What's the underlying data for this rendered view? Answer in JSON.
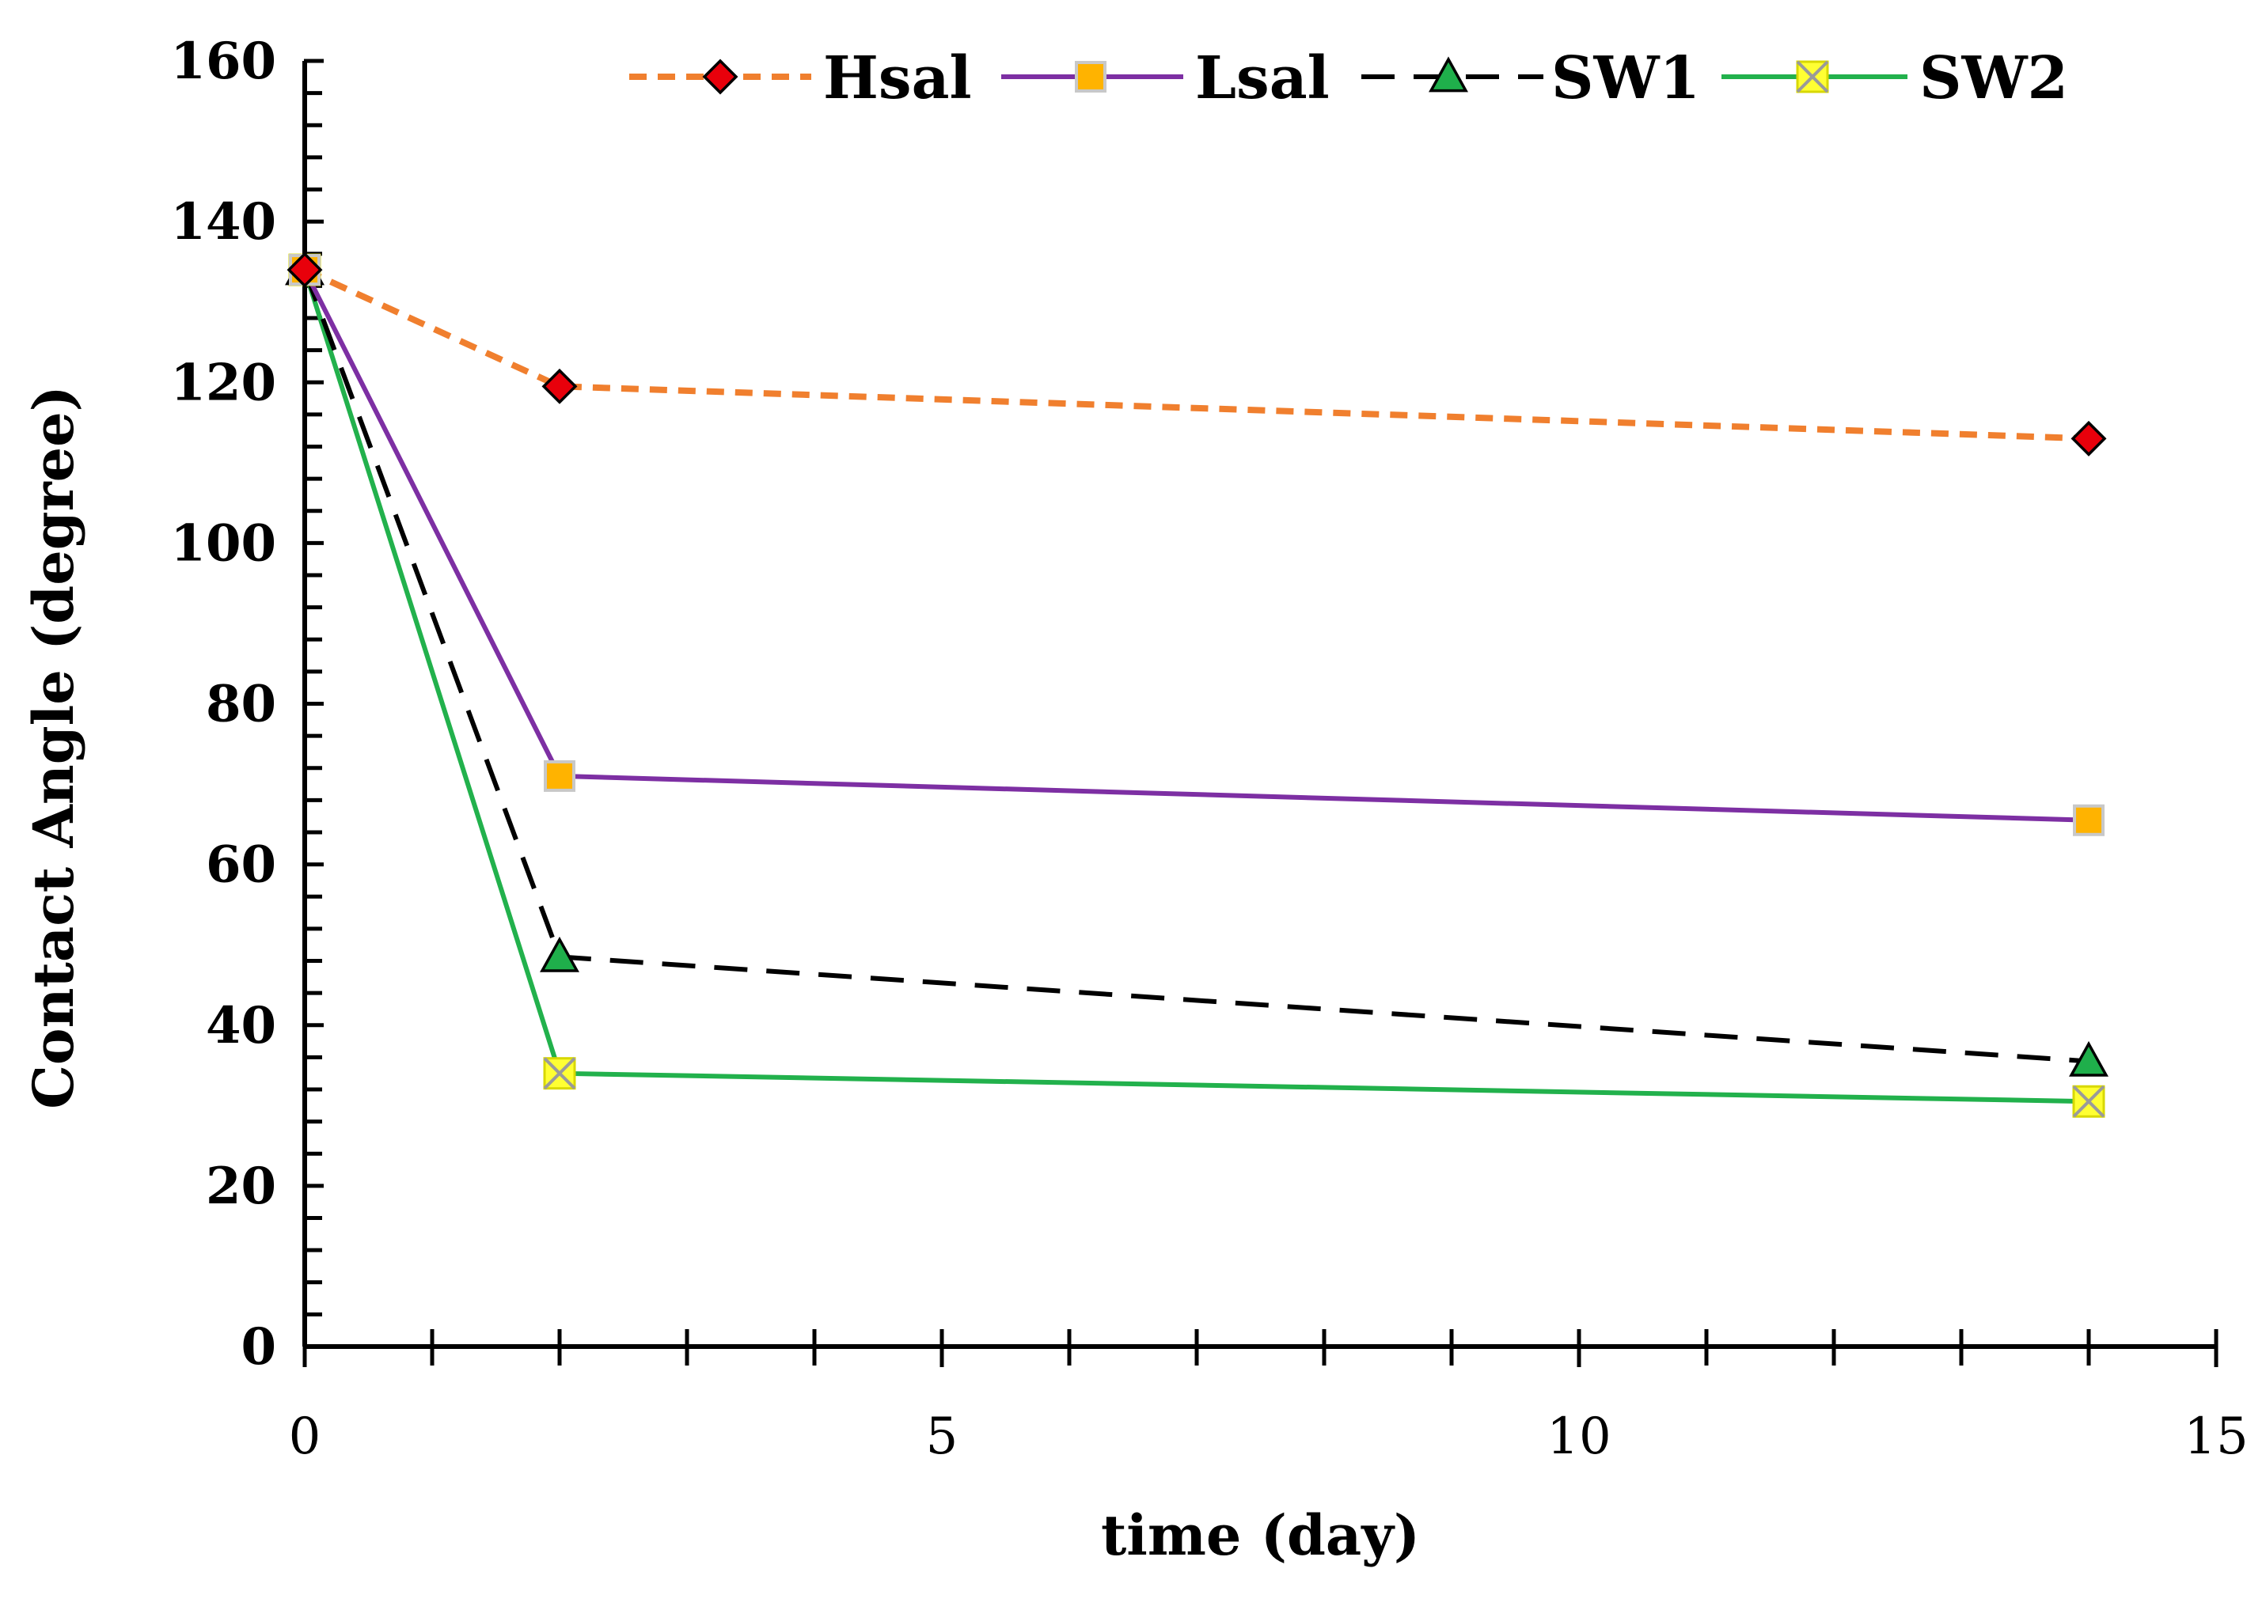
{
  "chart_data": {
    "type": "line",
    "title": "",
    "xlabel": "time (day)",
    "ylabel": "Contact Angle (degree)",
    "xlim": [
      0,
      15
    ],
    "ylim": [
      0,
      160
    ],
    "x_ticks": [
      0,
      5,
      10,
      15
    ],
    "y_ticks": [
      0,
      20,
      40,
      60,
      80,
      100,
      120,
      140,
      160
    ],
    "x_tick_labels": [
      "0",
      "5",
      "10",
      "15"
    ],
    "y_tick_labels": [
      "0",
      "20",
      "40",
      "60",
      "80",
      "100",
      "120",
      "140",
      "160"
    ],
    "grid": false,
    "legend_position": "top",
    "x": [
      0,
      2,
      14
    ],
    "series": [
      {
        "name": "Hsal",
        "values": [
          134,
          119.5,
          113
        ],
        "color": "#F07F2E",
        "dash": "dashed",
        "marker": "diamond",
        "marker_fill": "#E8000B"
      },
      {
        "name": "Lsal",
        "values": [
          134,
          71,
          65.5
        ],
        "color": "#7D2FA3",
        "dash": "solid",
        "marker": "square",
        "marker_fill": "#FFB300"
      },
      {
        "name": "SW1",
        "values": [
          134,
          48.5,
          35.5
        ],
        "color": "#000000",
        "dash": "longdash",
        "marker": "triangle",
        "marker_fill": "#1FAF4B"
      },
      {
        "name": "SW2",
        "values": [
          134,
          34,
          30.5
        ],
        "color": "#22B14C",
        "dash": "solid",
        "marker": "x-square",
        "marker_fill": "#FFFF33"
      }
    ]
  }
}
